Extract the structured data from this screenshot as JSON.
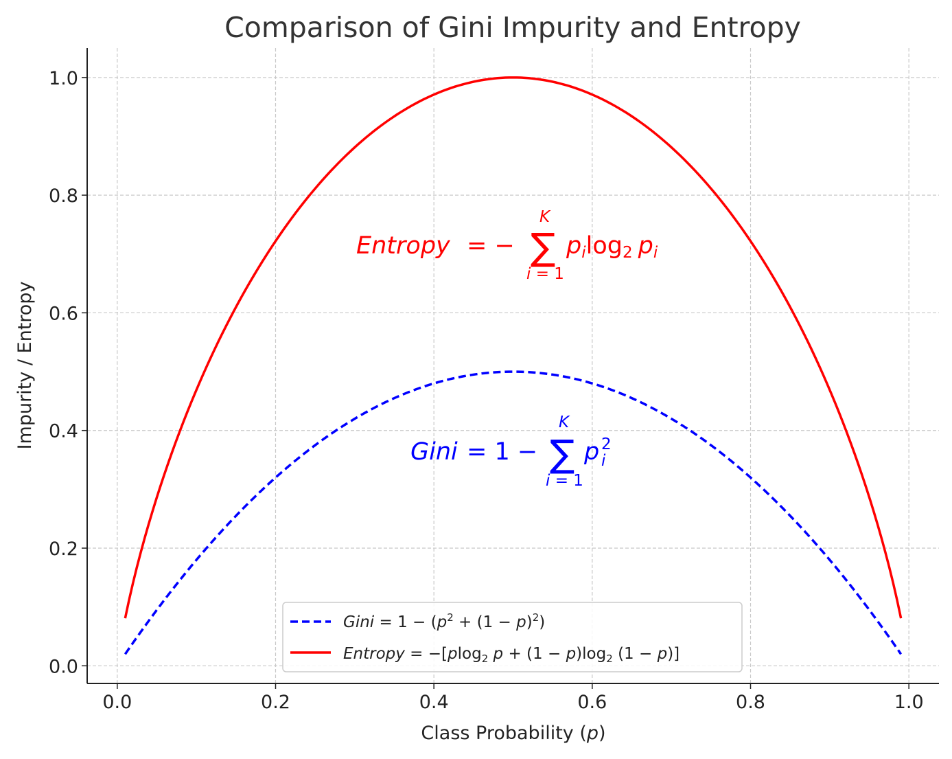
{
  "chart_data": {
    "type": "line",
    "title": "Comparison of Gini Impurity and Entropy",
    "xlabel": "Class Probability (p)",
    "ylabel": "Impurity / Entropy",
    "xlim": [
      -0.038,
      1.038
    ],
    "ylim": [
      -0.03,
      1.05
    ],
    "xticks": [
      0.0,
      0.2,
      0.4,
      0.6,
      0.8,
      1.0
    ],
    "yticks": [
      0.0,
      0.2,
      0.4,
      0.6,
      0.8,
      1.0
    ],
    "xtick_labels": [
      "0.0",
      "0.2",
      "0.4",
      "0.6",
      "0.8",
      "1.0"
    ],
    "ytick_labels": [
      "0.0",
      "0.2",
      "0.4",
      "0.6",
      "0.8",
      "1.0"
    ],
    "grid": true,
    "legend_position": "lower-center",
    "x_range": [
      0.01,
      0.99
    ],
    "series": [
      {
        "name": "Gini = 1 − (p² + (1 − p)²)",
        "function": "2p(1-p)",
        "color": "#0000ff",
        "style": "dashed",
        "points": [
          [
            0.01,
            0.0198
          ],
          [
            0.1,
            0.18
          ],
          [
            0.2,
            0.32
          ],
          [
            0.3,
            0.42
          ],
          [
            0.4,
            0.48
          ],
          [
            0.5,
            0.5
          ],
          [
            0.6,
            0.48
          ],
          [
            0.7,
            0.42
          ],
          [
            0.8,
            0.32
          ],
          [
            0.9,
            0.18
          ],
          [
            0.99,
            0.0198
          ]
        ]
      },
      {
        "name": "Entropy = −[p log₂ p + (1 − p) log₂ (1 − p)]",
        "function": "-(p*log2(p)+(1-p)*log2(1-p))",
        "color": "#ff0000",
        "style": "solid",
        "points": [
          [
            0.01,
            0.0808
          ],
          [
            0.1,
            0.469
          ],
          [
            0.2,
            0.7219
          ],
          [
            0.3,
            0.8813
          ],
          [
            0.4,
            0.971
          ],
          [
            0.5,
            1.0
          ],
          [
            0.6,
            0.971
          ],
          [
            0.7,
            0.8813
          ],
          [
            0.8,
            0.7219
          ],
          [
            0.9,
            0.469
          ],
          [
            0.99,
            0.0808
          ]
        ]
      }
    ],
    "annotations": [
      {
        "name": "entropy-formula",
        "x": 0.3,
        "y": 0.7,
        "color": "#ff0000"
      },
      {
        "name": "gini-formula",
        "x": 0.37,
        "y": 0.35,
        "color": "#0000ff"
      }
    ]
  }
}
